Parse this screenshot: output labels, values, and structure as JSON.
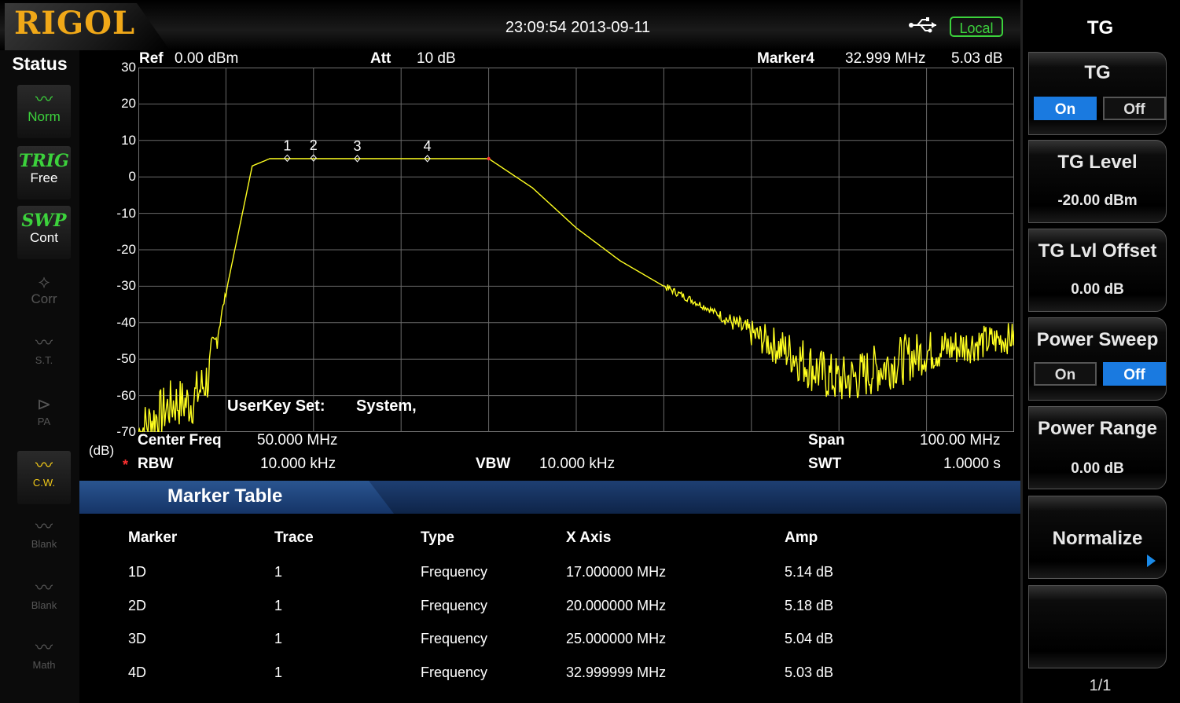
{
  "logo": "RIGOL",
  "header": {
    "datetime": "23:09:54 2013-09-11",
    "remote_status": "Local",
    "usb_icon": "usb-icon"
  },
  "status": {
    "title": "Status",
    "items": [
      {
        "icon": "wave-icon",
        "label": "Norm",
        "active": true
      },
      {
        "icon": "trig-icon",
        "top": "TRIG",
        "label": "Free",
        "active": true
      },
      {
        "icon": "swp-icon",
        "top": "SWP",
        "label": "Cont",
        "active": true
      },
      {
        "icon": "corr-icon",
        "label": "Corr",
        "active": false
      },
      {
        "icon": "st-icon",
        "label": "S.T.",
        "active": false
      },
      {
        "icon": "pa-icon",
        "label": "PA",
        "active": false
      },
      {
        "icon": "cw-icon",
        "label": "C.W.",
        "active": true
      },
      {
        "icon": "blank-icon",
        "label": "Blank",
        "active": false
      },
      {
        "icon": "blank-icon",
        "label": "Blank",
        "active": false
      },
      {
        "icon": "math-icon",
        "label": "Math",
        "active": false
      }
    ]
  },
  "plot": {
    "ref_label": "Ref",
    "ref_value": "0.00 dBm",
    "att_label": "Att",
    "att_value": "10 dB",
    "marker_label": "Marker4",
    "marker_freq": "32.999 MHz",
    "marker_amp": "5.03 dB",
    "y_ticks": [
      "30",
      "20",
      "10",
      "0",
      "-10",
      "-20",
      "-30",
      "-40",
      "-50",
      "-60",
      "-70"
    ],
    "y_unit": "(dB)",
    "userkey_label": "UserKey Set:",
    "userkey_value": "System,",
    "center_label": "Center Freq",
    "center_value": "50.000 MHz",
    "span_label": "Span",
    "span_value": "100.00 MHz",
    "rbw_label": "RBW",
    "rbw_value": "10.000 kHz",
    "vbw_label": "VBW",
    "vbw_value": "10.000 kHz",
    "swt_label": "SWT",
    "swt_value": "1.0000 s",
    "trace_color": "#ffff20",
    "marker_labels": [
      "1",
      "2",
      "3",
      "4"
    ]
  },
  "chart_data": {
    "type": "line",
    "x_range": [
      0,
      100
    ],
    "ylim": [
      -70,
      30
    ],
    "grid": true,
    "series": [
      {
        "x": [
          0,
          4,
          6,
          8,
          13,
          15,
          17,
          20,
          25,
          33,
          40,
          45,
          50,
          55,
          60,
          65,
          70,
          75,
          78,
          80,
          82,
          85,
          90,
          95,
          100
        ],
        "y": [
          -70,
          -62,
          -62,
          -55,
          3,
          5,
          5,
          5,
          5,
          5,
          5,
          -3,
          -14,
          -23,
          -30,
          -36,
          -43,
          -49,
          -54,
          -56,
          -55,
          -52,
          -48,
          -46,
          -44
        ]
      }
    ],
    "markers": [
      {
        "label": "1",
        "x": 17,
        "y": 5.14
      },
      {
        "label": "2",
        "x": 20,
        "y": 5.18
      },
      {
        "label": "3",
        "x": 25,
        "y": 5.04
      },
      {
        "label": "4",
        "x": 33,
        "y": 5.03
      }
    ]
  },
  "marker_table": {
    "title": "Marker Table",
    "headers": [
      "Marker",
      "Trace",
      "Type",
      "X Axis",
      "Amp"
    ],
    "rows": [
      [
        "1D",
        "1",
        "Frequency",
        "17.000000 MHz",
        "5.14 dB"
      ],
      [
        "2D",
        "1",
        "Frequency",
        "20.000000 MHz",
        "5.18 dB"
      ],
      [
        "3D",
        "1",
        "Frequency",
        "25.000000 MHz",
        "5.04 dB"
      ],
      [
        "4D",
        "1",
        "Frequency",
        "32.999999 MHz",
        "5.03 dB"
      ]
    ]
  },
  "softkeys": {
    "menu_title": "TG",
    "tg": {
      "label": "TG",
      "on": "On",
      "off": "Off",
      "selected": "On"
    },
    "tg_level": {
      "label": "TG Level",
      "value": "-20.00 dBm"
    },
    "tg_lvl_offset": {
      "label": "TG Lvl Offset",
      "value": "0.00 dB"
    },
    "power_sweep": {
      "label": "Power Sweep",
      "on": "On",
      "off": "Off",
      "selected": "Off"
    },
    "power_range": {
      "label": "Power Range",
      "value": "0.00 dB"
    },
    "normalize": {
      "label": "Normalize"
    },
    "page": "1/1"
  }
}
